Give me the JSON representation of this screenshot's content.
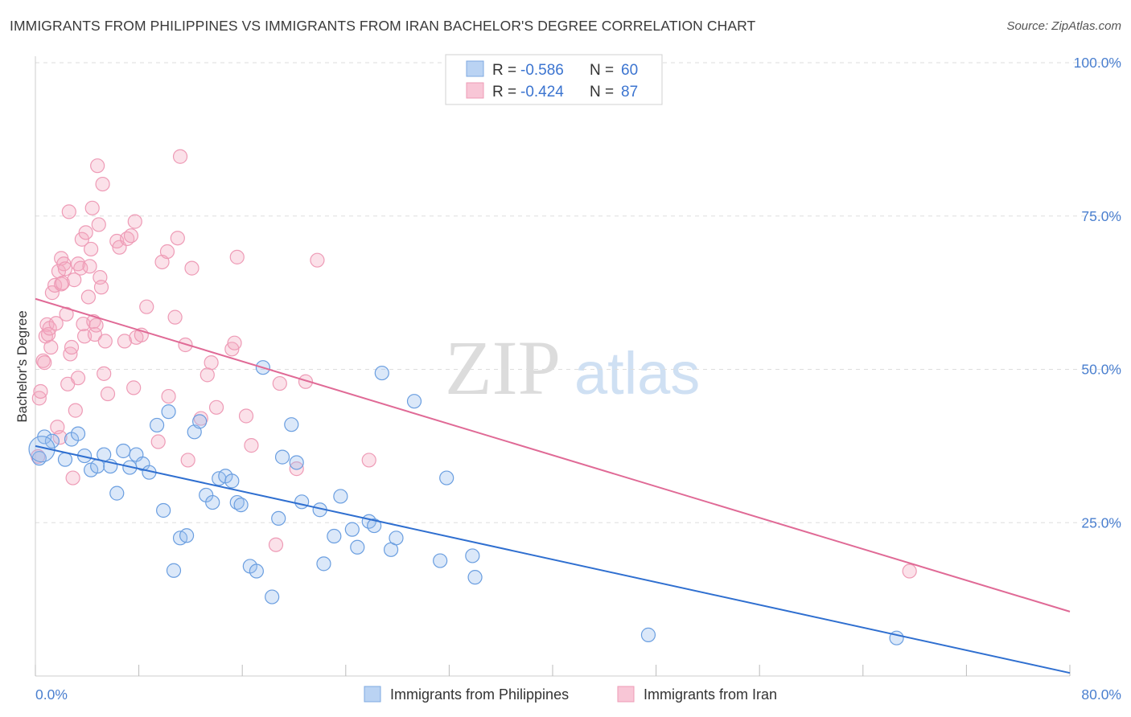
{
  "title": "IMMIGRANTS FROM PHILIPPINES VS IMMIGRANTS FROM IRAN BACHELOR'S DEGREE CORRELATION CHART",
  "source": "Source: ZipAtlas.com",
  "watermark": {
    "zip": "ZIP",
    "atlas": "atlas"
  },
  "legend_box": {
    "rows": [
      {
        "r_label": "R =",
        "r_value": "-0.586",
        "n_label": "N =",
        "n_value": "60"
      },
      {
        "r_label": "R =",
        "r_value": "-0.424",
        "n_label": "N =",
        "n_value": "87"
      }
    ]
  },
  "bottom_legend": [
    {
      "label": "Immigrants from Philippines"
    },
    {
      "label": "Immigrants from Iran"
    }
  ],
  "chart_data": {
    "type": "scatter",
    "title": "IMMIGRANTS FROM PHILIPPINES VS IMMIGRANTS FROM IRAN BACHELOR'S DEGREE CORRELATION CHART",
    "xlabel": "",
    "ylabel": "Bachelor's Degree",
    "xlim": [
      0,
      80
    ],
    "ylim": [
      0,
      100
    ],
    "x_tick_labels": [
      "0.0%",
      "80.0%"
    ],
    "y_ticks": [
      25,
      50,
      75,
      100
    ],
    "y_tick_labels": [
      "25.0%",
      "50.0%",
      "75.0%",
      "100.0%"
    ],
    "grid": "horizontal dashed",
    "legend_placement": "top-center",
    "colors": {
      "philippines": "#6a9ee0",
      "iran": "#ef9bb6",
      "philippines_line": "#2f6fd0",
      "iran_line": "#e06a96",
      "tick_text": "#4a7fcf"
    },
    "series": [
      {
        "name": "Immigrants from Philippines",
        "color": "#6a9ee0",
        "r": -0.586,
        "n": 60,
        "trend": [
          [
            0,
            37.5
          ],
          [
            80,
            0.5
          ]
        ],
        "points": [
          [
            0.3,
            35.5
          ],
          [
            0.7,
            39
          ],
          [
            1.3,
            38.3
          ],
          [
            2.3,
            35.3
          ],
          [
            2.8,
            38.6
          ],
          [
            3.3,
            39.5
          ],
          [
            3.8,
            35.9
          ],
          [
            4.3,
            33.6
          ],
          [
            4.8,
            34.2
          ],
          [
            5.3,
            36.1
          ],
          [
            5.8,
            34.2
          ],
          [
            6.3,
            29.8
          ],
          [
            6.8,
            36.7
          ],
          [
            7.3,
            34.0
          ],
          [
            7.8,
            36.1
          ],
          [
            8.3,
            34.6
          ],
          [
            8.8,
            33.2
          ],
          [
            9.4,
            40.9
          ],
          [
            9.9,
            27.0
          ],
          [
            10.3,
            43.1
          ],
          [
            10.7,
            17.2
          ],
          [
            11.2,
            22.5
          ],
          [
            11.7,
            22.9
          ],
          [
            12.3,
            39.8
          ],
          [
            12.7,
            41.5
          ],
          [
            13.2,
            29.5
          ],
          [
            13.7,
            28.3
          ],
          [
            14.2,
            32.2
          ],
          [
            14.7,
            32.6
          ],
          [
            15.2,
            31.8
          ],
          [
            15.6,
            28.3
          ],
          [
            15.9,
            27.9
          ],
          [
            16.6,
            17.9
          ],
          [
            17.1,
            17.1
          ],
          [
            17.6,
            50.3
          ],
          [
            18.3,
            12.9
          ],
          [
            18.8,
            25.7
          ],
          [
            19.1,
            35.7
          ],
          [
            19.8,
            41.0
          ],
          [
            20.2,
            34.8
          ],
          [
            20.6,
            28.4
          ],
          [
            22.0,
            27.1
          ],
          [
            22.3,
            18.3
          ],
          [
            23.1,
            22.8
          ],
          [
            23.6,
            29.3
          ],
          [
            24.5,
            23.9
          ],
          [
            24.9,
            21.0
          ],
          [
            25.8,
            25.2
          ],
          [
            26.2,
            24.5
          ],
          [
            26.8,
            49.4
          ],
          [
            27.5,
            20.6
          ],
          [
            27.9,
            22.5
          ],
          [
            29.3,
            44.8
          ],
          [
            31.3,
            18.8
          ],
          [
            31.8,
            32.3
          ],
          [
            33.8,
            19.6
          ],
          [
            34.0,
            16.1
          ],
          [
            47.4,
            6.7
          ],
          [
            66.6,
            6.2
          ],
          [
            0.5,
            37.0
          ]
        ]
      },
      {
        "name": "Immigrants from Iran",
        "color": "#ef9bb6",
        "r": -0.424,
        "n": 87,
        "trend": [
          [
            0,
            61.5
          ],
          [
            80,
            10.5
          ]
        ],
        "points": [
          [
            0.3,
            45.3
          ],
          [
            0.4,
            46.4
          ],
          [
            0.6,
            51.4
          ],
          [
            0.7,
            51.1
          ],
          [
            0.8,
            55.4
          ],
          [
            0.9,
            57.3
          ],
          [
            1.0,
            55.7
          ],
          [
            1.1,
            56.7
          ],
          [
            1.2,
            53.6
          ],
          [
            1.3,
            62.5
          ],
          [
            1.5,
            63.7
          ],
          [
            1.6,
            57.5
          ],
          [
            1.7,
            40.6
          ],
          [
            1.8,
            66.0
          ],
          [
            1.9,
            38.9
          ],
          [
            2.0,
            63.9
          ],
          [
            2.0,
            68.1
          ],
          [
            2.1,
            64.1
          ],
          [
            2.2,
            67.2
          ],
          [
            2.3,
            66.4
          ],
          [
            2.4,
            59.0
          ],
          [
            2.5,
            47.6
          ],
          [
            2.6,
            75.7
          ],
          [
            2.7,
            52.5
          ],
          [
            2.8,
            53.6
          ],
          [
            2.9,
            32.3
          ],
          [
            3.0,
            64.6
          ],
          [
            3.1,
            43.3
          ],
          [
            3.3,
            67.2
          ],
          [
            3.3,
            48.6
          ],
          [
            3.5,
            66.5
          ],
          [
            3.6,
            71.2
          ],
          [
            3.7,
            57.4
          ],
          [
            3.8,
            55.4
          ],
          [
            3.9,
            72.3
          ],
          [
            4.1,
            61.8
          ],
          [
            4.2,
            66.8
          ],
          [
            4.3,
            69.6
          ],
          [
            4.4,
            76.3
          ],
          [
            4.5,
            57.8
          ],
          [
            4.6,
            55.7
          ],
          [
            4.7,
            57.2
          ],
          [
            4.8,
            83.2
          ],
          [
            4.9,
            73.6
          ],
          [
            5.0,
            65.0
          ],
          [
            5.1,
            63.4
          ],
          [
            5.2,
            80.2
          ],
          [
            5.3,
            49.3
          ],
          [
            5.4,
            54.6
          ],
          [
            5.6,
            46.0
          ],
          [
            6.3,
            70.9
          ],
          [
            6.5,
            69.9
          ],
          [
            6.9,
            54.6
          ],
          [
            7.1,
            71.3
          ],
          [
            7.4,
            71.8
          ],
          [
            7.6,
            47.0
          ],
          [
            7.7,
            74.1
          ],
          [
            7.8,
            55.2
          ],
          [
            8.2,
            55.6
          ],
          [
            8.6,
            60.2
          ],
          [
            9.5,
            38.2
          ],
          [
            9.8,
            67.5
          ],
          [
            10.2,
            69.2
          ],
          [
            10.3,
            45.6
          ],
          [
            10.8,
            58.5
          ],
          [
            11.0,
            71.4
          ],
          [
            11.2,
            84.7
          ],
          [
            11.6,
            54.0
          ],
          [
            11.8,
            35.2
          ],
          [
            12.1,
            66.5
          ],
          [
            12.8,
            42.0
          ],
          [
            13.3,
            49.1
          ],
          [
            13.6,
            51.1
          ],
          [
            14.0,
            43.8
          ],
          [
            15.2,
            53.3
          ],
          [
            15.4,
            54.3
          ],
          [
            15.6,
            68.3
          ],
          [
            16.3,
            42.4
          ],
          [
            16.7,
            37.6
          ],
          [
            18.6,
            21.4
          ],
          [
            18.9,
            47.7
          ],
          [
            20.2,
            33.8
          ],
          [
            20.9,
            48.0
          ],
          [
            21.8,
            67.8
          ],
          [
            25.8,
            35.2
          ],
          [
            67.6,
            17.1
          ],
          [
            0.2,
            35.8
          ]
        ]
      }
    ]
  }
}
